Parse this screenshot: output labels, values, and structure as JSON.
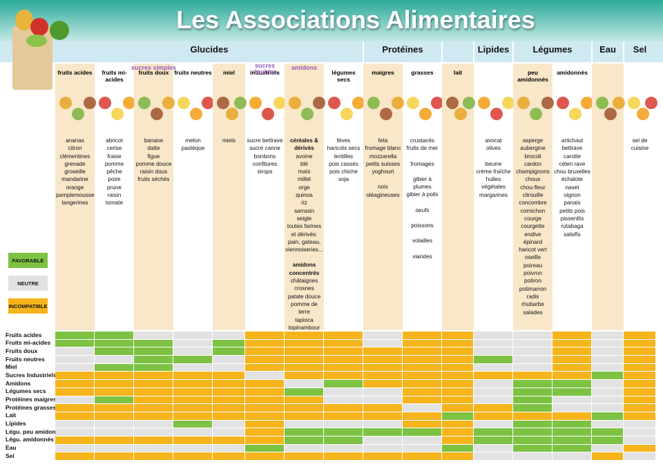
{
  "title": "Les Associations Alimentaires",
  "groups": [
    "Glucides",
    "Protéines",
    "Lipides",
    "Légumes",
    "Eau",
    "Sel"
  ],
  "subgroups": [
    "sucres simples",
    "sucres doubles",
    "amidons"
  ],
  "columns": [
    {
      "label": "fruits acides",
      "foods": [
        {
          "items": [
            "ananas",
            "citron",
            "clémentines",
            "grenade",
            "groseille",
            "mandarine",
            "orange",
            "pamplemousse",
            "tangerines"
          ]
        }
      ]
    },
    {
      "label": "fruits mi-acides",
      "foods": [
        {
          "items": [
            "abricot",
            "cerise",
            "fraise",
            "pomme",
            "pêche",
            "poire",
            "prune",
            "raisin",
            "tomate"
          ]
        }
      ]
    },
    {
      "label": "fruits doux",
      "foods": [
        {
          "items": [
            "banane",
            "datte",
            "figue",
            "pomme douce",
            "raisin doux",
            "fruits séchés"
          ]
        }
      ]
    },
    {
      "label": "fruits neutres",
      "foods": [
        {
          "items": [
            "melon",
            "pastèque"
          ]
        }
      ]
    },
    {
      "label": "miel",
      "foods": [
        {
          "items": [
            "miels"
          ]
        }
      ]
    },
    {
      "label": "industriels",
      "foods": [
        {
          "items": [
            "sucre bettrave",
            "sucre canne",
            "bonbons",
            "confitures",
            "sirops"
          ]
        }
      ]
    },
    {
      "foods": [
        {
          "heading": "céréales & dérivés",
          "items": [
            "avoine",
            "blé",
            "maïs",
            "millet",
            "orge",
            "quinoa",
            "riz",
            "sarrasin",
            "seigle",
            "toutes farines",
            "et dérivés:",
            "pain, gateau,",
            "viennoiseries..."
          ]
        },
        {
          "heading": "amidons concentrés",
          "items": [
            "châtaignes",
            "crosnes",
            "patate douce",
            "pomme de terre",
            "tapioca",
            "topinambour"
          ]
        }
      ]
    },
    {
      "label": "légumes secs",
      "foods": [
        {
          "items": [
            "fèves",
            "haricots secs",
            "lentilles",
            "pois cassés",
            "pois chiche",
            "soja"
          ]
        }
      ]
    },
    {
      "label": "maigres",
      "foods": [
        {
          "items": [
            "feta",
            "fromage blanc",
            "mozzarella",
            "petits suisses",
            "yoghourt"
          ]
        },
        {
          "items": [
            "noix",
            "oléagineuses"
          ]
        }
      ]
    },
    {
      "label": "grasses",
      "foods": [
        {
          "items": [
            "crustacés",
            "fruits de mer"
          ]
        },
        {
          "items": [
            "fromages"
          ]
        },
        {
          "items": [
            "gibier à plumes",
            "gibier à poils"
          ]
        },
        {
          "items": [
            "oeufs"
          ]
        },
        {
          "items": [
            "poissons"
          ]
        },
        {
          "items": [
            "volailles"
          ]
        },
        {
          "items": [
            "viandes"
          ]
        }
      ]
    },
    {
      "label": "lait",
      "foods": []
    },
    {
      "foods": [
        {
          "items": [
            "avocat",
            "olives"
          ]
        },
        {
          "items": [
            "beurre",
            "crème fraîche",
            "huiles végétales",
            "margarines"
          ]
        }
      ]
    },
    {
      "label": "peu amidonnés",
      "foods": [
        {
          "items": [
            "asperge",
            "aubergine",
            "brocoli",
            "cardon",
            "champignons",
            "choux",
            "chou-fleur",
            "citrouille",
            "concombre",
            "cornichon",
            "courge",
            "courgette",
            "endive",
            "épinard",
            "haricot vert",
            "oseille",
            "poireau",
            "poivron",
            "potiron",
            "potimarron",
            "radis",
            "rhubarbe",
            "salades"
          ]
        }
      ]
    },
    {
      "label": "amidonnés",
      "foods": [
        {
          "items": [
            "artichaut",
            "bettrave",
            "carotte",
            "céleri rave",
            "chou bruxelles",
            "échalote",
            "navet",
            "oignon",
            "panais",
            "petits pois",
            "pissenlits",
            "rutabaga",
            "salsifis"
          ]
        }
      ]
    },
    {
      "foods": []
    },
    {
      "foods": [
        {
          "items": [
            "sel de cuisine"
          ]
        }
      ]
    }
  ],
  "legend": [
    {
      "label": "FAVORABLE",
      "color": "#7dc243"
    },
    {
      "label": "NEUTRE",
      "color": "#e2e2e2"
    },
    {
      "label": "INCOMPATIBLE",
      "color": "#f5b41c"
    }
  ],
  "rows": [
    "Fruits acides",
    "Fruits mi-acides",
    "Fruits doux",
    "Fruits neutres",
    "Miel",
    "Sucres Industriels",
    "Amidons",
    "Légumes secs",
    "Protéines maigres",
    "Protéines grasses",
    "Lait",
    "Lipides",
    "Légu. peu amidon",
    "Légu. amidonnés",
    "Eau",
    "Sel"
  ],
  "grid": [
    [
      0,
      0,
      1,
      1,
      1,
      2,
      2,
      2,
      1,
      2,
      2,
      1,
      1,
      2,
      1,
      2
    ],
    [
      0,
      0,
      0,
      1,
      0,
      2,
      2,
      2,
      1,
      2,
      2,
      1,
      1,
      2,
      1,
      2
    ],
    [
      1,
      0,
      0,
      1,
      0,
      2,
      2,
      2,
      2,
      2,
      2,
      1,
      1,
      2,
      1,
      2
    ],
    [
      1,
      1,
      0,
      0,
      1,
      2,
      2,
      2,
      2,
      2,
      2,
      0,
      1,
      2,
      1,
      2
    ],
    [
      1,
      0,
      0,
      1,
      1,
      2,
      2,
      2,
      2,
      2,
      2,
      1,
      1,
      2,
      1,
      2
    ],
    [
      2,
      2,
      2,
      2,
      2,
      1,
      2,
      2,
      2,
      2,
      2,
      2,
      2,
      2,
      0,
      2
    ],
    [
      2,
      2,
      2,
      2,
      2,
      2,
      1,
      0,
      2,
      2,
      2,
      1,
      0,
      0,
      1,
      2
    ],
    [
      2,
      2,
      2,
      2,
      2,
      2,
      0,
      1,
      1,
      2,
      2,
      1,
      0,
      0,
      1,
      2
    ],
    [
      1,
      0,
      2,
      2,
      2,
      2,
      2,
      1,
      1,
      2,
      2,
      1,
      0,
      1,
      1,
      2
    ],
    [
      2,
      2,
      2,
      2,
      2,
      2,
      2,
      2,
      2,
      1,
      2,
      2,
      0,
      1,
      1,
      2
    ],
    [
      2,
      2,
      2,
      2,
      2,
      2,
      2,
      2,
      2,
      2,
      0,
      2,
      2,
      2,
      0,
      2
    ],
    [
      1,
      1,
      1,
      0,
      1,
      2,
      1,
      1,
      1,
      2,
      2,
      1,
      0,
      0,
      1,
      1
    ],
    [
      1,
      1,
      1,
      1,
      1,
      2,
      0,
      0,
      0,
      0,
      2,
      0,
      0,
      0,
      0,
      1
    ],
    [
      2,
      2,
      2,
      2,
      2,
      2,
      0,
      0,
      1,
      1,
      2,
      0,
      0,
      0,
      0,
      1
    ],
    [
      1,
      1,
      1,
      1,
      1,
      0,
      1,
      1,
      1,
      1,
      0,
      1,
      0,
      0,
      1,
      2
    ],
    [
      2,
      2,
      2,
      2,
      2,
      2,
      2,
      2,
      2,
      2,
      2,
      1,
      1,
      1,
      2,
      1
    ]
  ]
}
